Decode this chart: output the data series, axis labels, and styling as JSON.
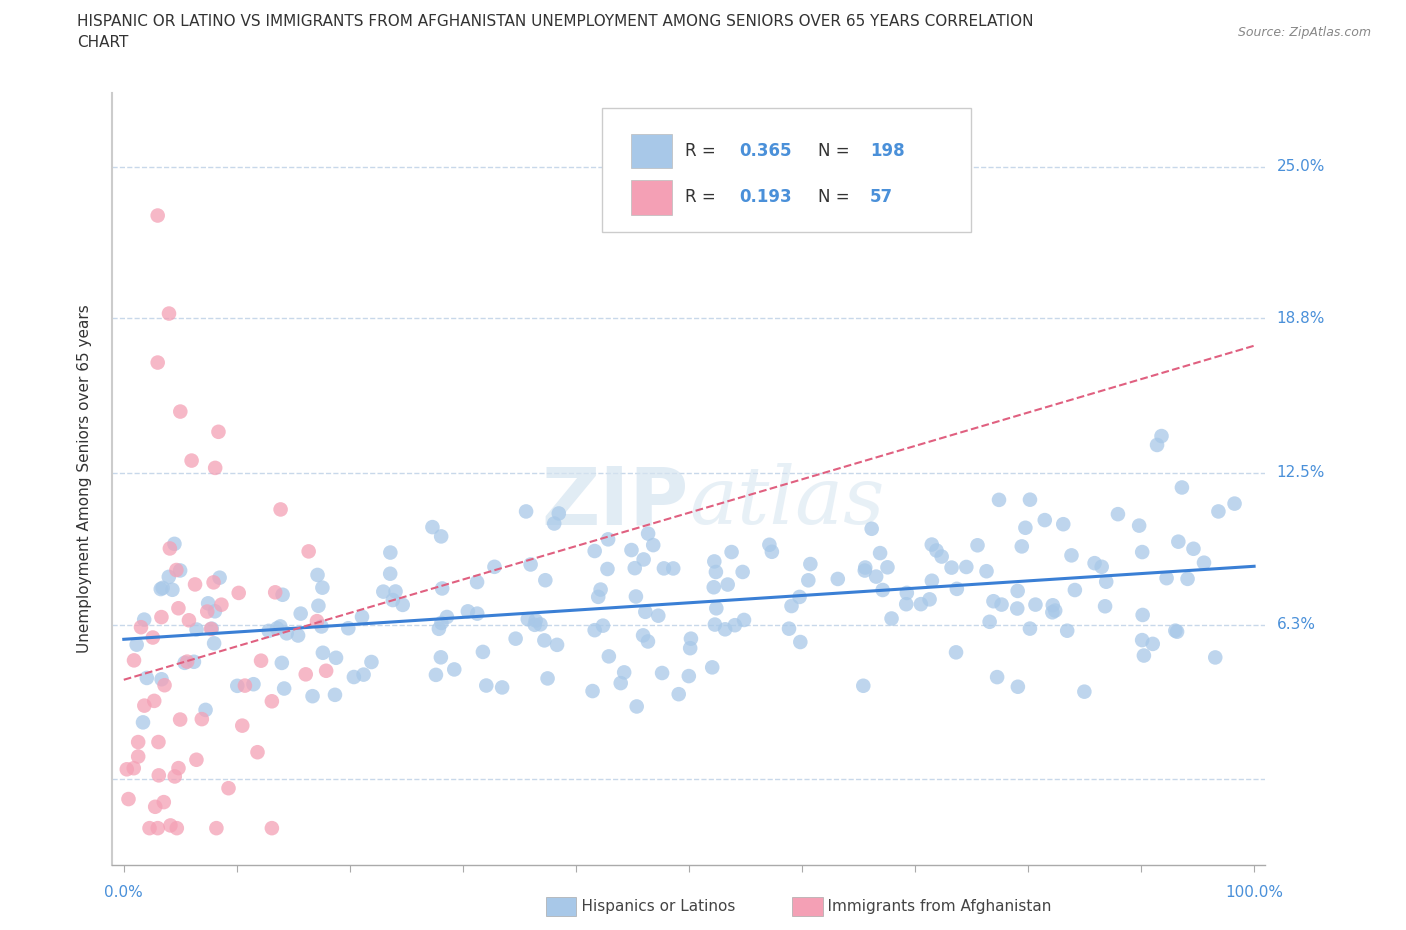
{
  "title_line1": "HISPANIC OR LATINO VS IMMIGRANTS FROM AFGHANISTAN UNEMPLOYMENT AMONG SENIORS OVER 65 YEARS CORRELATION",
  "title_line2": "CHART",
  "source": "Source: ZipAtlas.com",
  "ylabel": "Unemployment Among Seniors over 65 years",
  "blue_R": 0.365,
  "blue_N": 198,
  "pink_R": 0.193,
  "pink_N": 57,
  "blue_color": "#a8c8e8",
  "pink_color": "#f4a0b5",
  "blue_line_color": "#3a7fd5",
  "pink_line_color": "#e06080",
  "legend_label_blue": "Hispanics or Latinos",
  "legend_label_pink": "Immigrants from Afghanistan",
  "watermark_zip": "ZIP",
  "watermark_atlas": "atlas",
  "background_color": "#ffffff",
  "grid_color": "#c8d8ea",
  "title_color": "#333333",
  "axis_label_color": "#333333",
  "tick_color": "#4a90d9",
  "source_color": "#888888"
}
